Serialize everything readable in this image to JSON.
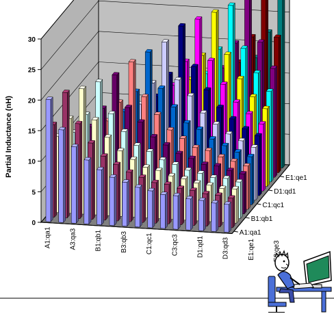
{
  "chart_data": {
    "type": "bar",
    "subtype": "3d-bar",
    "title": "",
    "xlabel": "",
    "ylabel": "Partial Inductance (nH)",
    "zlabel": "",
    "ylim": [
      0,
      30
    ],
    "yticks": [
      0,
      5,
      10,
      15,
      20,
      25,
      30
    ],
    "grid": true,
    "legend": "none",
    "x_tick_labels": [
      "A1:qa1",
      "A3:qa3",
      "B1:qb1",
      "B3:qb3",
      "C1:qc1",
      "C3:qc3",
      "D1:qd1",
      "D3:qd3",
      "E1:qe1",
      "E3:qe3"
    ],
    "z_tick_labels": [
      "A1:qa1",
      "B1:qb1",
      "C1:qc1",
      "D1:qd1",
      "E1:qe1"
    ],
    "x_categories_count": 15,
    "z_categories_count": 15,
    "series_colors": [
      "#9999ff",
      "#993366",
      "#ffffcc",
      "#ccffff",
      "#660066",
      "#ff8080",
      "#0066cc",
      "#ccccff",
      "#000080",
      "#ff00ff",
      "#ffff00",
      "#00ffff",
      "#800080",
      "#800000",
      "#008080",
      "#0000ff"
    ],
    "diagonal_values": [
      20,
      20.5,
      20.5,
      21,
      21.5,
      23,
      24,
      25,
      27,
      27.5,
      28,
      28.5,
      29,
      29.2,
      29.5
    ],
    "off_diagonal_note": "",
    "values_matrix_rule": "diag/(1 + 0.32*|i-j|)"
  },
  "decoration": {
    "clipart": "man-at-computer-icon"
  }
}
